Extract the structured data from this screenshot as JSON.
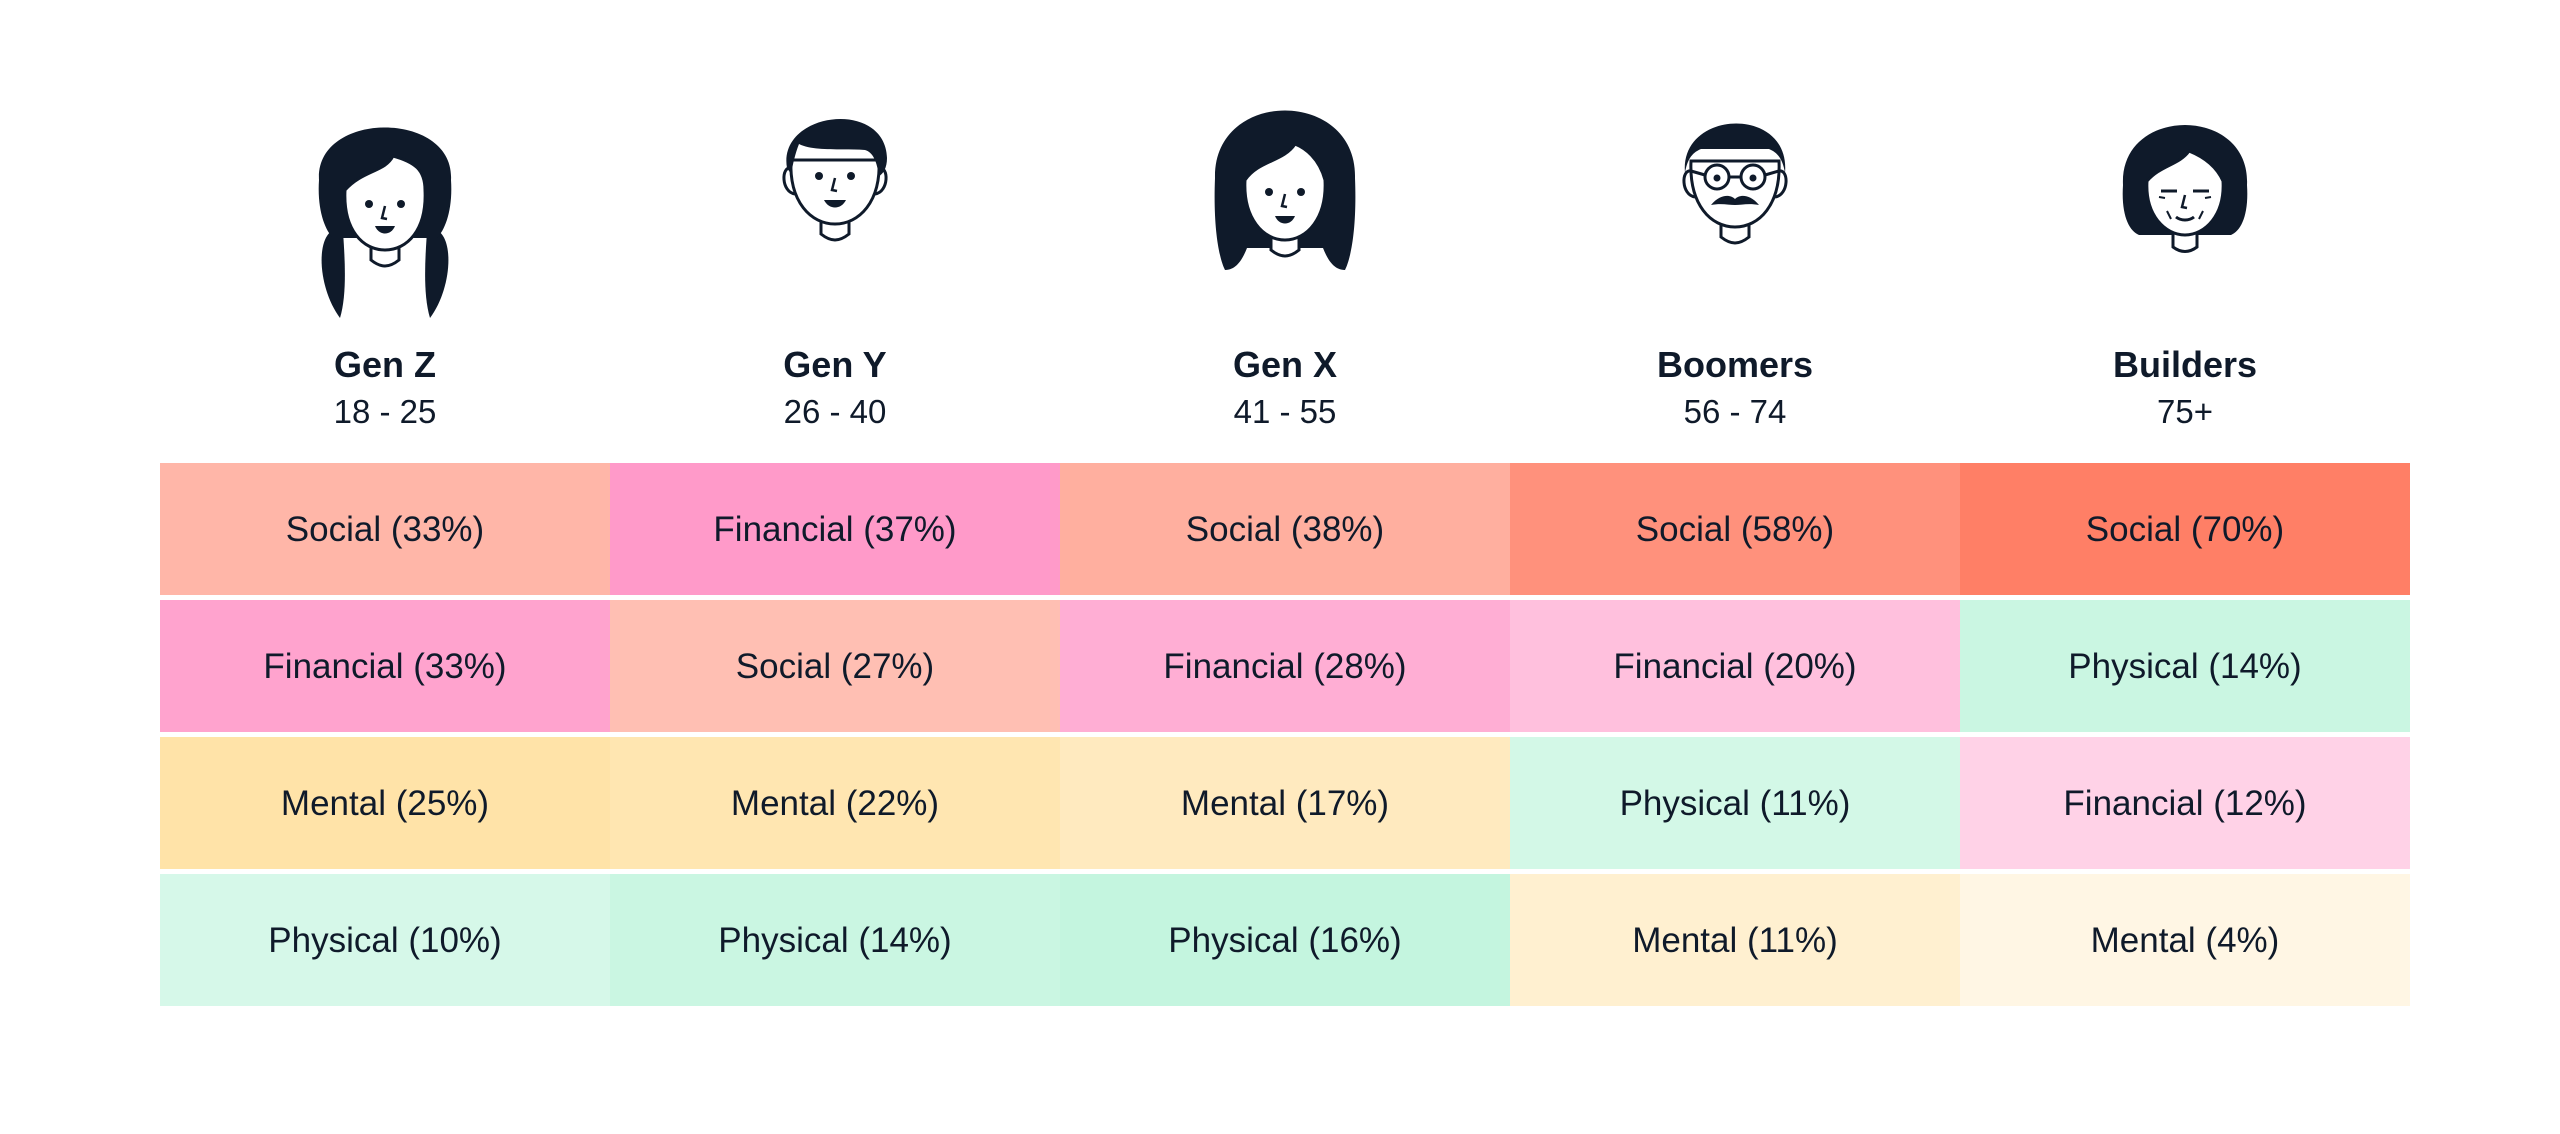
{
  "chart_data": {
    "type": "heatmap",
    "title": "",
    "columns": [
      {
        "name": "Gen Z",
        "age": "18 - 25",
        "avatar": "girl-pigtails-avatar-icon"
      },
      {
        "name": "Gen Y",
        "age": "26 - 40",
        "avatar": "young-man-avatar-icon"
      },
      {
        "name": "Gen X",
        "age": "41 - 55",
        "avatar": "woman-bob-avatar-icon"
      },
      {
        "name": "Boomers",
        "age": "56 - 74",
        "avatar": "man-glasses-mustache-avatar-icon"
      },
      {
        "name": "Builders",
        "age": "75+",
        "avatar": "elderly-woman-avatar-icon"
      }
    ],
    "rows": [
      [
        {
          "category": "Social",
          "value": 33,
          "label": "Social (33%)"
        },
        {
          "category": "Financial",
          "value": 37,
          "label": "Financial (37%)"
        },
        {
          "category": "Social",
          "value": 38,
          "label": "Social (38%)"
        },
        {
          "category": "Social",
          "value": 58,
          "label": "Social (58%)"
        },
        {
          "category": "Social",
          "value": 70,
          "label": "Social (70%)"
        }
      ],
      [
        {
          "category": "Financial",
          "value": 33,
          "label": "Financial (33%)"
        },
        {
          "category": "Social",
          "value": 27,
          "label": "Social (27%)"
        },
        {
          "category": "Financial",
          "value": 28,
          "label": "Financial (28%)"
        },
        {
          "category": "Financial",
          "value": 20,
          "label": "Financial (20%)"
        },
        {
          "category": "Physical",
          "value": 14,
          "label": "Physical (14%)"
        }
      ],
      [
        {
          "category": "Mental",
          "value": 25,
          "label": "Mental (25%)"
        },
        {
          "category": "Mental",
          "value": 22,
          "label": "Mental (22%)"
        },
        {
          "category": "Mental",
          "value": 17,
          "label": "Mental (17%)"
        },
        {
          "category": "Physical",
          "value": 11,
          "label": "Physical (11%)"
        },
        {
          "category": "Financial",
          "value": 12,
          "label": "Financial (12%)"
        }
      ],
      [
        {
          "category": "Physical",
          "value": 10,
          "label": "Physical (10%)"
        },
        {
          "category": "Physical",
          "value": 14,
          "label": "Physical (14%)"
        },
        {
          "category": "Physical",
          "value": 16,
          "label": "Physical (16%)"
        },
        {
          "category": "Mental",
          "value": 11,
          "label": "Mental (11%)"
        },
        {
          "category": "Mental",
          "value": 4,
          "label": "Mental (4%)"
        }
      ]
    ],
    "category_colors": {
      "Social": "#ff7f66",
      "Financial": "#ff9ac9",
      "Mental": "#ffe3a8",
      "Physical": "#c4f5df"
    },
    "text_color": "#0f1a2a",
    "icon_color": "#0f1a2a",
    "grid": false,
    "legend": "none"
  }
}
